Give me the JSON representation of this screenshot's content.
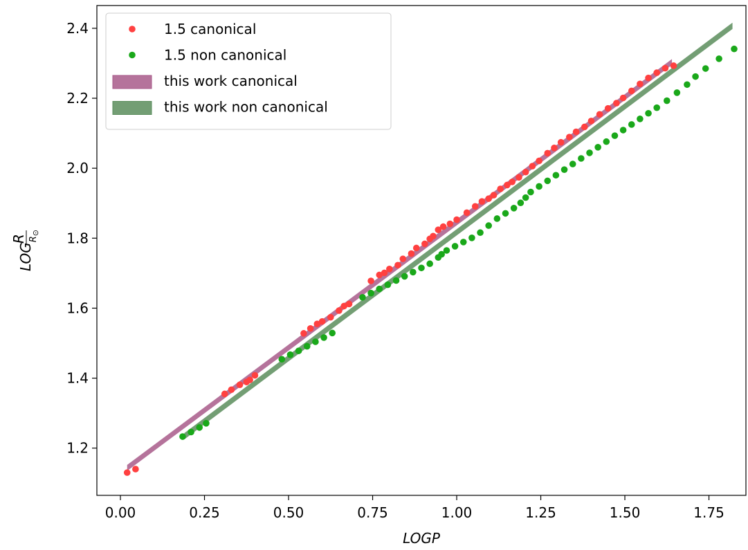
{
  "chart_data": {
    "type": "scatter",
    "xlabel": "LOGP",
    "ylabel": "LOG R/R⊙",
    "xlim": [
      -0.07,
      1.86
    ],
    "ylim": [
      1.065,
      2.465
    ],
    "xticks": [
      "0.00",
      "0.25",
      "0.50",
      "0.75",
      "1.00",
      "1.25",
      "1.50",
      "1.75"
    ],
    "yticks": [
      "1.2",
      "1.4",
      "1.6",
      "1.8",
      "2.0",
      "2.2",
      "2.4"
    ],
    "legend_position": "upper-left",
    "colors": {
      "canonical_points": "#ff4040",
      "non_canonical_points": "#1aa81a",
      "canonical_band": "#a85a89",
      "non_canonical_band": "#5a8d5c"
    },
    "series": [
      {
        "name": "1.5 canonical",
        "kind": "points",
        "x": [
          0.02,
          0.045,
          0.31,
          0.33,
          0.355,
          0.375,
          0.385,
          0.4,
          0.545,
          0.565,
          0.585,
          0.6,
          0.625,
          0.65,
          0.665,
          0.68,
          0.745,
          0.77,
          0.785,
          0.8,
          0.825,
          0.84,
          0.865,
          0.88,
          0.905,
          0.92,
          0.93,
          0.945,
          0.96,
          0.98,
          1.0,
          1.03,
          1.055,
          1.075,
          1.095,
          1.11,
          1.13,
          1.15,
          1.165,
          1.185,
          1.205,
          1.225,
          1.245,
          1.27,
          1.29,
          1.31,
          1.335,
          1.355,
          1.38,
          1.4,
          1.425,
          1.45,
          1.475,
          1.495,
          1.52,
          1.545,
          1.57,
          1.595,
          1.62,
          1.645
        ],
        "y": [
          1.13,
          1.14,
          1.355,
          1.367,
          1.381,
          1.389,
          1.395,
          1.408,
          1.528,
          1.542,
          1.555,
          1.562,
          1.574,
          1.593,
          1.606,
          1.612,
          1.678,
          1.695,
          1.701,
          1.712,
          1.723,
          1.741,
          1.756,
          1.772,
          1.784,
          1.798,
          1.806,
          1.824,
          1.833,
          1.841,
          1.853,
          1.873,
          1.891,
          1.905,
          1.913,
          1.923,
          1.941,
          1.952,
          1.961,
          1.974,
          1.989,
          2.006,
          2.021,
          2.043,
          2.058,
          2.074,
          2.089,
          2.104,
          2.118,
          2.135,
          2.154,
          2.171,
          2.186,
          2.201,
          2.221,
          2.241,
          2.258,
          2.273,
          2.286,
          2.293
        ]
      },
      {
        "name": "1.5 non canonical",
        "kind": "points",
        "x": [
          0.185,
          0.21,
          0.235,
          0.255,
          0.48,
          0.505,
          0.53,
          0.555,
          0.58,
          0.605,
          0.63,
          0.72,
          0.745,
          0.77,
          0.795,
          0.82,
          0.845,
          0.87,
          0.895,
          0.92,
          0.945,
          0.955,
          0.97,
          0.995,
          1.02,
          1.045,
          1.07,
          1.095,
          1.12,
          1.145,
          1.17,
          1.19,
          1.205,
          1.22,
          1.245,
          1.27,
          1.295,
          1.32,
          1.345,
          1.37,
          1.395,
          1.42,
          1.445,
          1.47,
          1.495,
          1.52,
          1.545,
          1.57,
          1.595,
          1.625,
          1.655,
          1.685,
          1.71,
          1.74,
          1.78,
          1.825
        ],
        "y": [
          1.233,
          1.246,
          1.259,
          1.271,
          1.454,
          1.467,
          1.478,
          1.491,
          1.504,
          1.516,
          1.529,
          1.631,
          1.643,
          1.655,
          1.667,
          1.679,
          1.691,
          1.703,
          1.715,
          1.727,
          1.745,
          1.754,
          1.765,
          1.777,
          1.789,
          1.801,
          1.816,
          1.836,
          1.856,
          1.871,
          1.886,
          1.901,
          1.916,
          1.932,
          1.948,
          1.964,
          1.98,
          1.996,
          2.012,
          2.028,
          2.044,
          2.06,
          2.076,
          2.093,
          2.109,
          2.125,
          2.141,
          2.157,
          2.173,
          2.193,
          2.216,
          2.239,
          2.262,
          2.285,
          2.313,
          2.341
        ]
      },
      {
        "name": "this work canonical",
        "kind": "band",
        "x": [
          0.02,
          1.64
        ],
        "y_lower": [
          1.135,
          2.295
        ],
        "y_upper": [
          1.152,
          2.312
        ]
      },
      {
        "name": "this work non canonical",
        "kind": "band",
        "x": [
          0.19,
          1.82
        ],
        "y_lower": [
          1.225,
          2.398
        ],
        "y_upper": [
          1.243,
          2.416
        ]
      }
    ]
  }
}
